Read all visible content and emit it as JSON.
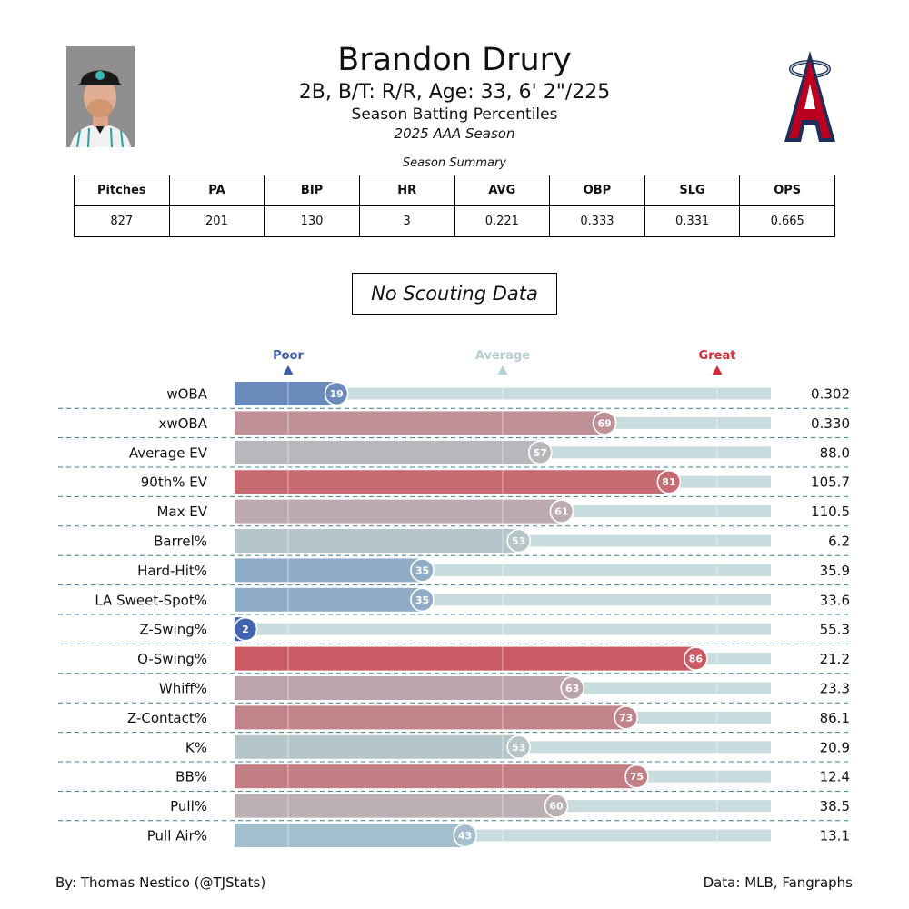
{
  "player": {
    "name": "Brandon Drury",
    "bio": "2B, B/T: R/R, Age: 33, 6' 2\"/225",
    "subtitle": "Season Batting Percentiles",
    "season": "2025 AAA Season"
  },
  "summary": {
    "caption": "Season Summary",
    "headers": [
      "Pitches",
      "PA",
      "BIP",
      "HR",
      "AVG",
      "OBP",
      "SLG",
      "OPS"
    ],
    "values": [
      "827",
      "201",
      "130",
      "3",
      "0.221",
      "0.333",
      "0.331",
      "0.665"
    ]
  },
  "scouting": "No Scouting Data",
  "footer": {
    "credit": "By: Thomas Nestico (@TJStats)",
    "source": "Data: MLB, Fangraphs"
  },
  "colors": {
    "poor": "#3d5fae",
    "average": "#b4cfd2",
    "great": "#d22d38",
    "track": "#c8dcdd"
  },
  "chart_data": {
    "type": "bar",
    "orientation": "horizontal",
    "xlim": [
      0,
      100
    ],
    "reference_markers": [
      {
        "label": "Poor",
        "value": 10
      },
      {
        "label": "Average",
        "value": 50
      },
      {
        "label": "Great",
        "value": 90
      }
    ],
    "categories": [
      "wOBA",
      "xwOBA",
      "Average EV",
      "90th% EV",
      "Max EV",
      "Barrel%",
      "Hard-Hit%",
      "LA Sweet-Spot%",
      "Z-Swing%",
      "O-Swing%",
      "Whiff%",
      "Z-Contact%",
      "K%",
      "BB%",
      "Pull%",
      "Pull Air%"
    ],
    "percentiles": [
      19,
      69,
      57,
      81,
      61,
      53,
      35,
      35,
      2,
      86,
      63,
      73,
      53,
      75,
      60,
      43
    ],
    "stat_values": [
      "0.302",
      "0.330",
      "88.0",
      "105.7",
      "110.5",
      "6.2",
      "35.9",
      "33.6",
      "55.3",
      "21.2",
      "23.3",
      "86.1",
      "20.9",
      "12.4",
      "38.5",
      "13.1"
    ]
  }
}
